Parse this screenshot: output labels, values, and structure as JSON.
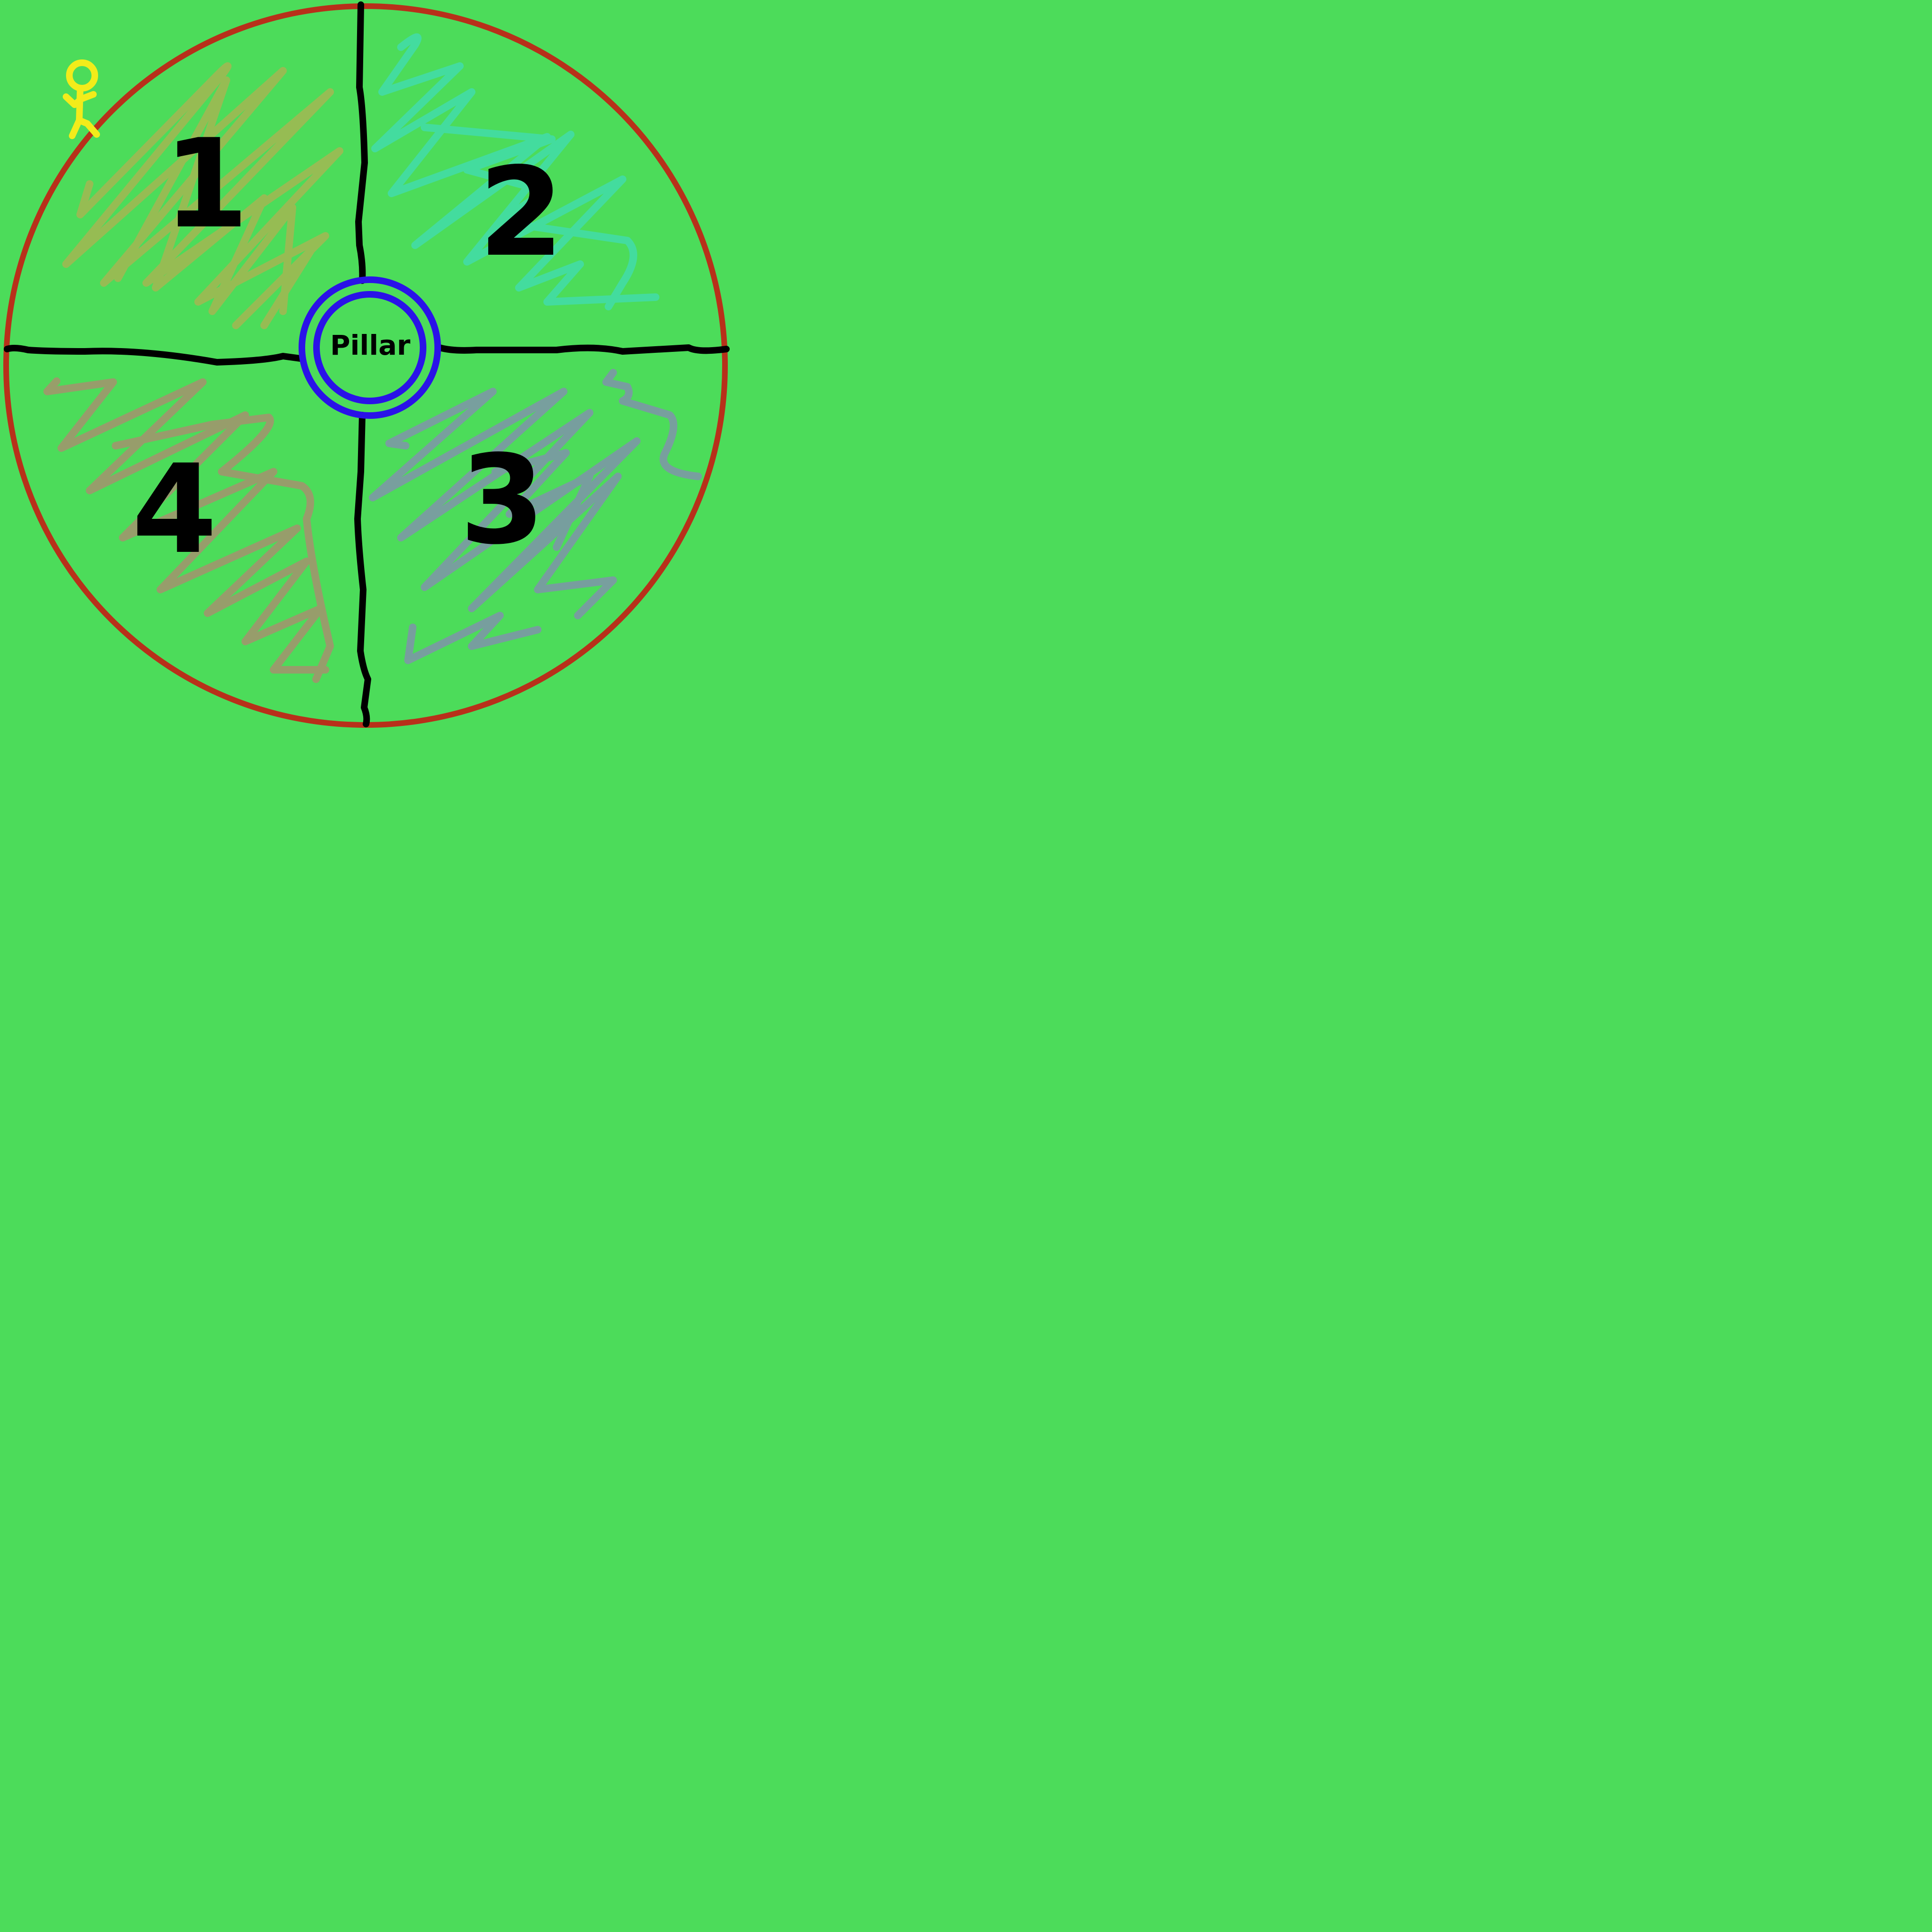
{
  "diagram": {
    "center_label": "Pillar",
    "sections": [
      {
        "id": "1",
        "label": "1",
        "scribble_color": "#9fb953"
      },
      {
        "id": "2",
        "label": "2",
        "scribble_color": "#43dca6"
      },
      {
        "id": "3",
        "label": "3",
        "scribble_color": "#7a9ba2"
      },
      {
        "id": "4",
        "label": "4",
        "scribble_color": "#9c9a6c"
      }
    ],
    "colors": {
      "background": "#4cdc5a",
      "outer_ring": "#b8301a",
      "pillar_ring": "#2a12e8",
      "divider": "#000000",
      "player_figure": "#f2ec1a"
    },
    "icons": {
      "player": "stick-figure-icon"
    }
  }
}
